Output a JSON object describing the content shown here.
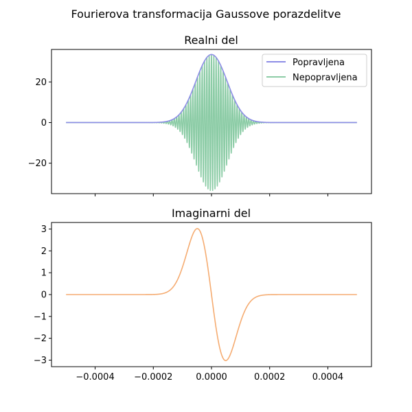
{
  "figure": {
    "suptitle": "Fourierova transformacija Gaussove porazdelitve"
  },
  "chart_data": [
    {
      "type": "line",
      "title": "Realni del",
      "xlabel": "",
      "ylabel": "",
      "xlim": [
        -0.00055,
        0.00055
      ],
      "ylim": [
        -35,
        36
      ],
      "yticks": [
        -20,
        0,
        20
      ],
      "ytick_labels": [
        "−20",
        "0",
        "20"
      ],
      "xticks": [
        -0.0004,
        -0.0002,
        0.0,
        0.0002,
        0.0004
      ],
      "xtick_labels_visible": false,
      "grid": false,
      "legend": "top-right",
      "series": [
        {
          "name": "Popravljena",
          "color": "#8c8ce6",
          "formula": "A*exp(-(x/s)^2)",
          "amplitude": 33.5,
          "sigma": 7.6e-05,
          "x_range": [
            -0.0005,
            0.0005
          ]
        },
        {
          "name": "Nepopravljena",
          "color": "#8ccca6",
          "formula": "A*exp(-(x/s)^2)*cos(2*pi*f*x)",
          "amplitude": 33.5,
          "sigma": 7.6e-05,
          "frequency": 125000,
          "x_range": [
            -0.0005,
            0.0005
          ]
        }
      ]
    },
    {
      "type": "line",
      "title": "Imaginarni del",
      "xlabel": "",
      "ylabel": "",
      "xlim": [
        -0.00055,
        0.00055
      ],
      "ylim": [
        -3.3,
        3.3
      ],
      "yticks": [
        -3,
        -2,
        -1,
        0,
        1,
        2,
        3
      ],
      "ytick_labels": [
        "−3",
        "−2",
        "−1",
        "0",
        "1",
        "2",
        "3"
      ],
      "xticks": [
        -0.0004,
        -0.0002,
        0.0,
        0.0002,
        0.0004
      ],
      "xtick_labels": [
        "−0.0004",
        "−0.0002",
        "0.0000",
        "0.0002",
        "0.0004"
      ],
      "grid": false,
      "series": [
        {
          "color": "#f5ab70",
          "formula": "-peak*sqrt(2e)*(x/s)*exp(-(x/s)^2)",
          "peak": 3.02,
          "sigma": 6.9e-05,
          "x_range": [
            -0.0005,
            0.0005
          ]
        }
      ]
    }
  ]
}
